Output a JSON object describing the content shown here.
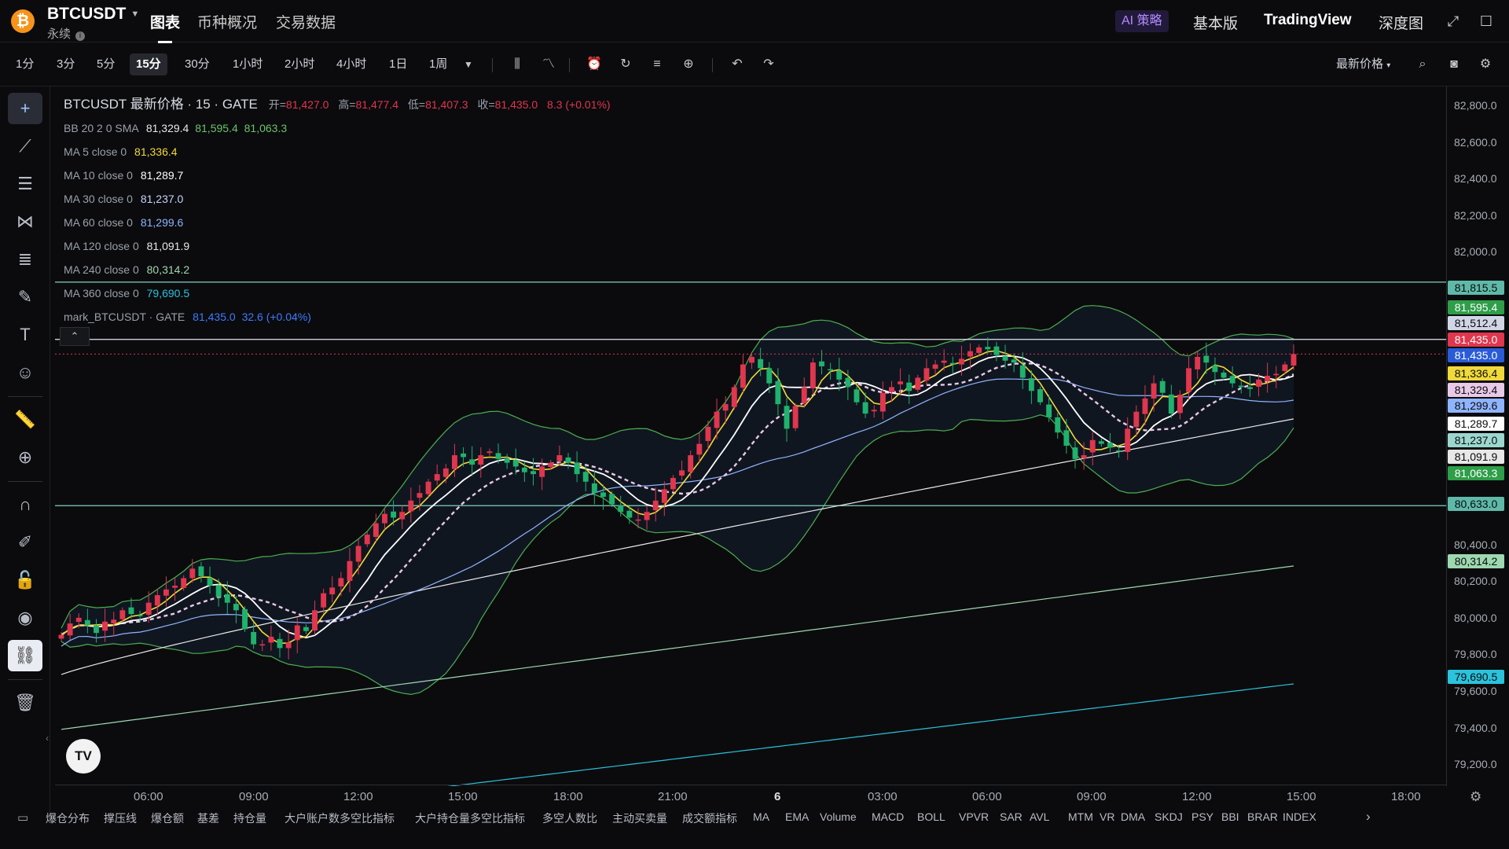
{
  "header": {
    "coin_glyph": "₿",
    "symbol": "BTCUSDT",
    "contract_type": "永续",
    "nav_tabs": [
      "图表",
      "币种概况",
      "交易数据"
    ],
    "ai_label": "AI 策略",
    "right_nav": [
      "基本版",
      "TradingView",
      "深度图"
    ]
  },
  "toolbar": {
    "timeframes": [
      "1分",
      "3分",
      "5分",
      "15分",
      "30分",
      "1小时",
      "2小时",
      "4小时",
      "1日",
      "1周"
    ],
    "active_timeframe": "15分",
    "price_type": "最新价格"
  },
  "legend": {
    "title": "BTCUSDT 最新价格 · 15 · GATE",
    "ohlc": [
      {
        "label": "开=",
        "value": "81,427.0"
      },
      {
        "label": "高=",
        "value": "81,477.4"
      },
      {
        "label": "低=",
        "value": "81,407.3"
      },
      {
        "label": "收=",
        "value": "81,435.0"
      }
    ],
    "change": "8.3 (+0.01%)",
    "bb": {
      "label": "BB 20 2 0 SMA",
      "basis": "81,329.4",
      "upper": "81,595.4",
      "lower": "81,063.3"
    },
    "ma": [
      {
        "label": "MA 5 close 0",
        "value": "81,336.4",
        "color": "#f0d93a"
      },
      {
        "label": "MA 10 close 0",
        "value": "81,289.7",
        "color": "#ffffff"
      },
      {
        "label": "MA 30 close 0",
        "value": "81,237.0",
        "color": "#c7d4ff"
      },
      {
        "label": "MA 60 close 0",
        "value": "81,299.6",
        "color": "#8fb4ff"
      },
      {
        "label": "MA 120 close 0",
        "value": "81,091.9",
        "color": "#e8e8e8"
      },
      {
        "label": "MA 240 close 0",
        "value": "80,314.2",
        "color": "#9ed8b0"
      },
      {
        "label": "MA 360 close 0",
        "value": "79,690.5",
        "color": "#2bc2dc"
      }
    ],
    "mark": {
      "label": "mark_BTCUSDT · GATE",
      "value": "81,435.0",
      "change": "32.6 (+0.04%)"
    }
  },
  "yaxis": {
    "ticks": [
      "82,800.0",
      "82,600.0",
      "82,400.0",
      "82,200.0",
      "82,000.0",
      "80,400.0",
      "80,200.0",
      "80,000.0",
      "79,800.0",
      "79,600.0",
      "79,400.0",
      "79,200.0"
    ],
    "price_boxes": [
      {
        "value": "81,815.5",
        "bg": "#5fb9a8",
        "fg": "#0b0b0d"
      },
      {
        "value": "81,595.4",
        "bg": "#2e9e48",
        "fg": "#ffffff"
      },
      {
        "value": "81,512.4",
        "bg": "#d0d6e6",
        "fg": "#0b0b0d"
      },
      {
        "value": "81,435.0",
        "bg": "#e0364e",
        "fg": "#ffffff"
      },
      {
        "value": "81,435.0",
        "bg": "#2a5bd7",
        "fg": "#ffffff"
      },
      {
        "value": "81,336.4",
        "bg": "#f0d93a",
        "fg": "#0b0b0d"
      },
      {
        "value": "81,329.4",
        "bg": "#e8c9e8",
        "fg": "#0b0b0d"
      },
      {
        "value": "81,299.6",
        "bg": "#8fb4ff",
        "fg": "#0b0b0d"
      },
      {
        "value": "81,289.7",
        "bg": "#ffffff",
        "fg": "#0b0b0d"
      },
      {
        "value": "81,237.0",
        "bg": "#9bd7cf",
        "fg": "#0b0b0d"
      },
      {
        "value": "81,091.9",
        "bg": "#e8e8e8",
        "fg": "#0b0b0d"
      },
      {
        "value": "81,063.3",
        "bg": "#2e9e48",
        "fg": "#ffffff"
      },
      {
        "value": "80,633.0",
        "bg": "#5fb9a8",
        "fg": "#0b0b0d"
      },
      {
        "value": "80,314.2",
        "bg": "#9ed8b0",
        "fg": "#0b0b0d"
      },
      {
        "value": "79,690.5",
        "bg": "#2bc2dc",
        "fg": "#0b0b0d"
      }
    ]
  },
  "xaxis": {
    "ticks": [
      "06:00",
      "09:00",
      "12:00",
      "15:00",
      "18:00",
      "21:00",
      "6",
      "03:00",
      "06:00",
      "09:00",
      "12:00",
      "15:00",
      "18:00"
    ]
  },
  "bottom_tabs": [
    "爆仓分布",
    "撑压线",
    "爆仓额",
    "基差",
    "持仓量",
    "大户账户数多空比指标",
    "大户持仓量多空比指标",
    "多空人数比",
    "主动买卖量",
    "成交额指标",
    "MA",
    "EMA",
    "Volume",
    "MACD",
    "BOLL",
    "VPVR",
    "SAR",
    "AVL",
    "MTM",
    "VR",
    "DMA",
    "SKDJ",
    "PSY",
    "BBI",
    "BRAR",
    "INDEX"
  ],
  "tv_logo": "TV",
  "chart_data": {
    "type": "candlestick",
    "interval": "15分",
    "y_range": [
      79150,
      82850
    ],
    "horizontal_lines": [
      81815.5,
      81512.4,
      80633.0
    ],
    "closes": [
      79950,
      80010,
      80040,
      80000,
      79960,
      80020,
      80030,
      80080,
      80060,
      80050,
      80120,
      80160,
      80190,
      80210,
      80250,
      80300,
      80260,
      80210,
      80150,
      80120,
      80080,
      79980,
      79900,
      79900,
      79940,
      79880,
      79910,
      80000,
      79970,
      80080,
      80170,
      80200,
      80250,
      80340,
      80420,
      80480,
      80540,
      80590,
      80570,
      80600,
      80660,
      80700,
      80760,
      80800,
      80830,
      80900,
      80890,
      80850,
      80900,
      80920,
      80880,
      80860,
      80840,
      80810,
      80800,
      80840,
      80860,
      80900,
      80860,
      80800,
      80760,
      80700,
      80680,
      80640,
      80600,
      80570,
      80560,
      80600,
      80660,
      80720,
      80780,
      80820,
      80900,
      80960,
      81050,
      81130,
      81170,
      81260,
      81380,
      81420,
      81360,
      81280,
      81170,
      81040,
      81160,
      81260,
      81390,
      81370,
      81350,
      81300,
      81260,
      81180,
      81120,
      81140,
      81230,
      81260,
      81290,
      81240,
      81310,
      81360,
      81380,
      81400,
      81380,
      81410,
      81450,
      81470,
      81460,
      81430,
      81400,
      81390,
      81310,
      81240,
      81180,
      81100,
      81020,
      80950,
      80880,
      80900,
      80980,
      80960,
      80940,
      80920,
      81040,
      81130,
      81200,
      81280,
      81230,
      81120,
      81220,
      81360,
      81420,
      81390,
      81340,
      81310,
      81280,
      81260,
      81250,
      81300,
      81320,
      81330,
      81380,
      81435
    ]
  }
}
